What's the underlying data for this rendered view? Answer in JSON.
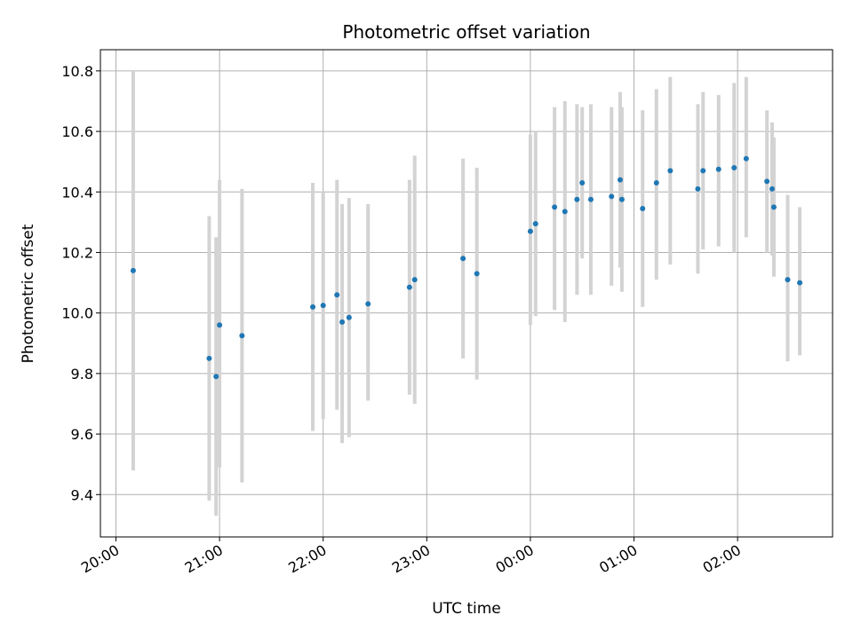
{
  "chart_data": {
    "type": "scatter",
    "title": "Photometric offset variation",
    "xlabel": "UTC time",
    "ylabel": "Photometric offset",
    "xlim": [
      "19:51",
      "02:55"
    ],
    "ylim": [
      9.26,
      10.87
    ],
    "x_ticks": [
      "20:00",
      "21:00",
      "22:00",
      "23:00",
      "00:00",
      "01:00",
      "02:00"
    ],
    "y_ticks": [
      "9.4",
      "9.6",
      "9.8",
      "10.0",
      "10.2",
      "10.4",
      "10.6",
      "10.8"
    ],
    "grid": true,
    "colors": {
      "points": "#1f77b4",
      "error_bars": "#d3d3d3",
      "grid": "#b0b0b0"
    },
    "points": [
      {
        "t": "20:10",
        "y": 10.14,
        "lo": 9.48,
        "hi": 10.8
      },
      {
        "t": "20:54",
        "y": 9.85,
        "lo": 9.38,
        "hi": 10.32
      },
      {
        "t": "20:58",
        "y": 9.79,
        "lo": 9.33,
        "hi": 10.25
      },
      {
        "t": "21:00",
        "y": 9.96,
        "lo": 9.49,
        "hi": 10.44
      },
      {
        "t": "21:13",
        "y": 9.925,
        "lo": 9.44,
        "hi": 10.41
      },
      {
        "t": "21:54",
        "y": 10.02,
        "lo": 9.61,
        "hi": 10.43
      },
      {
        "t": "22:00",
        "y": 10.025,
        "lo": 9.65,
        "hi": 10.4
      },
      {
        "t": "22:08",
        "y": 10.06,
        "lo": 9.68,
        "hi": 10.44
      },
      {
        "t": "22:11",
        "y": 9.97,
        "lo": 9.57,
        "hi": 10.36
      },
      {
        "t": "22:15",
        "y": 9.985,
        "lo": 9.59,
        "hi": 10.38
      },
      {
        "t": "22:26",
        "y": 10.03,
        "lo": 9.71,
        "hi": 10.36
      },
      {
        "t": "22:50",
        "y": 10.085,
        "lo": 9.73,
        "hi": 10.44
      },
      {
        "t": "22:53",
        "y": 10.11,
        "lo": 9.7,
        "hi": 10.52
      },
      {
        "t": "23:21",
        "y": 10.18,
        "lo": 9.85,
        "hi": 10.51
      },
      {
        "t": "23:29",
        "y": 10.13,
        "lo": 9.78,
        "hi": 10.48
      },
      {
        "t": "00:00",
        "y": 10.27,
        "lo": 9.96,
        "hi": 10.59
      },
      {
        "t": "00:03",
        "y": 10.295,
        "lo": 9.99,
        "hi": 10.6
      },
      {
        "t": "00:14",
        "y": 10.35,
        "lo": 10.01,
        "hi": 10.68
      },
      {
        "t": "00:20",
        "y": 10.335,
        "lo": 9.97,
        "hi": 10.7
      },
      {
        "t": "00:27",
        "y": 10.375,
        "lo": 10.06,
        "hi": 10.69
      },
      {
        "t": "00:30",
        "y": 10.43,
        "lo": 10.18,
        "hi": 10.68
      },
      {
        "t": "00:35",
        "y": 10.375,
        "lo": 10.06,
        "hi": 10.69
      },
      {
        "t": "00:47",
        "y": 10.385,
        "lo": 10.09,
        "hi": 10.68
      },
      {
        "t": "00:52",
        "y": 10.44,
        "lo": 10.15,
        "hi": 10.73
      },
      {
        "t": "00:53",
        "y": 10.375,
        "lo": 10.07,
        "hi": 10.68
      },
      {
        "t": "01:05",
        "y": 10.345,
        "lo": 10.02,
        "hi": 10.67
      },
      {
        "t": "01:13",
        "y": 10.43,
        "lo": 10.11,
        "hi": 10.74
      },
      {
        "t": "01:21",
        "y": 10.47,
        "lo": 10.16,
        "hi": 10.78
      },
      {
        "t": "01:37",
        "y": 10.41,
        "lo": 10.13,
        "hi": 10.69
      },
      {
        "t": "01:40",
        "y": 10.47,
        "lo": 10.21,
        "hi": 10.73
      },
      {
        "t": "01:49",
        "y": 10.475,
        "lo": 10.22,
        "hi": 10.72
      },
      {
        "t": "01:58",
        "y": 10.48,
        "lo": 10.2,
        "hi": 10.76
      },
      {
        "t": "02:05",
        "y": 10.51,
        "lo": 10.25,
        "hi": 10.78
      },
      {
        "t": "02:17",
        "y": 10.435,
        "lo": 10.2,
        "hi": 10.67
      },
      {
        "t": "02:20",
        "y": 10.41,
        "lo": 10.19,
        "hi": 10.63
      },
      {
        "t": "02:21",
        "y": 10.35,
        "lo": 10.12,
        "hi": 10.58
      },
      {
        "t": "02:29",
        "y": 10.11,
        "lo": 9.84,
        "hi": 10.39
      },
      {
        "t": "02:36",
        "y": 10.1,
        "lo": 9.86,
        "hi": 10.35
      }
    ]
  }
}
